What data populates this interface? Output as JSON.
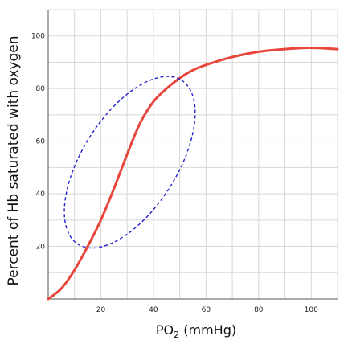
{
  "chart_data": {
    "type": "line",
    "title": "",
    "xlabel": "PO2 (mmHg)",
    "xlabel_main": "PO",
    "xlabel_sub": "2",
    "xlabel_rest": " (mmHg)",
    "ylabel": "Percent of Hb saturated with oxygen",
    "xlim": [
      0,
      110
    ],
    "ylim": [
      0,
      110
    ],
    "x_ticks": [
      20,
      40,
      60,
      80,
      100
    ],
    "y_ticks": [
      20,
      40,
      60,
      80,
      100
    ],
    "grid": true,
    "series": [
      {
        "color": "#e8453c",
        "points": [
          [
            0,
            0
          ],
          [
            5,
            4
          ],
          [
            10,
            11
          ],
          [
            15,
            20
          ],
          [
            20,
            30
          ],
          [
            25,
            42
          ],
          [
            30,
            55
          ],
          [
            35,
            67
          ],
          [
            40,
            75
          ],
          [
            45,
            80
          ],
          [
            50,
            84
          ],
          [
            55,
            87
          ],
          [
            60,
            89
          ],
          [
            70,
            92
          ],
          [
            80,
            94
          ],
          [
            90,
            95
          ],
          [
            100,
            95.5
          ],
          [
            110,
            95
          ]
        ]
      }
    ],
    "annotations": [
      {
        "type": "dashed-ellipse",
        "color": "#2222cc",
        "x_range": [
          7,
          55
        ],
        "y_range": [
          14,
          90
        ]
      }
    ]
  }
}
